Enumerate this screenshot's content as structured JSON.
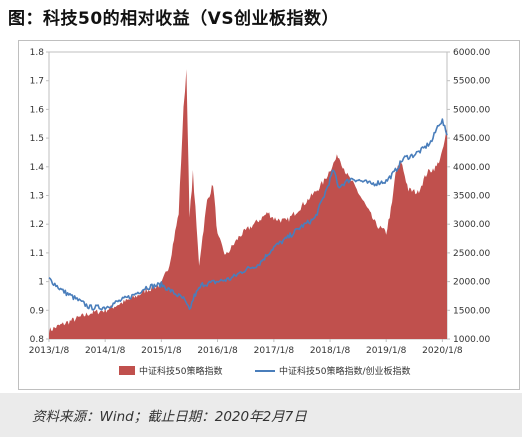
{
  "title": "图：科技50的相对收益（VS创业板指数）",
  "source": "资料来源：Wind；截止日期：2020年2月7日",
  "colors": {
    "area": "#c0504d",
    "line": "#4a7ebb",
    "axis": "#bfbfbf"
  },
  "chart_data": {
    "type": "area",
    "title": "",
    "x_ticks": [
      "2013/1/8",
      "2014/1/8",
      "2015/1/8",
      "2016/1/8",
      "2017/1/8",
      "2018/1/8",
      "2019/1/8",
      "2020/1/8"
    ],
    "xlim": [
      "2013/1/8",
      "2020/2/7"
    ],
    "y_left": {
      "ticks": [
        "0.8",
        "0.9",
        "1",
        "1.1",
        "1.2",
        "1.3",
        "1.4",
        "1.5",
        "1.6",
        "1.7",
        "1.8"
      ],
      "lim": [
        0.8,
        1.8
      ]
    },
    "y_right": {
      "ticks": [
        "1000.00",
        "1500.00",
        "2000.00",
        "2500.00",
        "3000.00",
        "3500.00",
        "4000.00",
        "4500.00",
        "5000.00",
        "5500.00",
        "6000.00"
      ],
      "lim": [
        1000,
        6000
      ]
    },
    "legend_position": "bottom",
    "series": [
      {
        "name": "中证科技50策略指数",
        "kind": "area",
        "axis": "right",
        "points": [
          [
            "2013/1/8",
            1150
          ],
          [
            "2013/4/1",
            1250
          ],
          [
            "2013/7/1",
            1350
          ],
          [
            "2013/10/1",
            1450
          ],
          [
            "2014/1/8",
            1500
          ],
          [
            "2014/4/1",
            1600
          ],
          [
            "2014/7/1",
            1700
          ],
          [
            "2014/10/1",
            1850
          ],
          [
            "2015/1/8",
            1950
          ],
          [
            "2015/3/1",
            2300
          ],
          [
            "2015/5/1",
            3200
          ],
          [
            "2015/6/1",
            5000
          ],
          [
            "2015/6/20",
            5700
          ],
          [
            "2015/7/10",
            3100
          ],
          [
            "2015/8/1",
            3900
          ],
          [
            "2015/9/10",
            2300
          ],
          [
            "2015/11/1",
            3400
          ],
          [
            "2015/12/10",
            3700
          ],
          [
            "2016/1/8",
            2800
          ],
          [
            "2016/3/1",
            2450
          ],
          [
            "2016/6/1",
            2800
          ],
          [
            "2016/9/1",
            3000
          ],
          [
            "2016/12/1",
            3200
          ],
          [
            "2017/1/8",
            3100
          ],
          [
            "2017/4/1",
            3050
          ],
          [
            "2017/7/1",
            3300
          ],
          [
            "2017/10/1",
            3550
          ],
          [
            "2017/12/1",
            3750
          ],
          [
            "2018/1/8",
            3950
          ],
          [
            "2018/3/1",
            4200
          ],
          [
            "2018/5/1",
            3850
          ],
          [
            "2018/7/1",
            3600
          ],
          [
            "2018/9/1",
            3300
          ],
          [
            "2018/11/1",
            3000
          ],
          [
            "2019/1/8",
            2850
          ],
          [
            "2019/2/15",
            3350
          ],
          [
            "2019/3/10",
            3900
          ],
          [
            "2019/4/15",
            4100
          ],
          [
            "2019/6/1",
            3600
          ],
          [
            "2019/8/1",
            3550
          ],
          [
            "2019/10/1",
            3900
          ],
          [
            "2019/12/1",
            4000
          ],
          [
            "2020/1/8",
            4250
          ],
          [
            "2020/2/7",
            4650
          ]
        ]
      },
      {
        "name": "中证科技50策略指数/创业板指数",
        "kind": "line",
        "axis": "left",
        "points": [
          [
            "2013/1/8",
            1.01
          ],
          [
            "2013/4/1",
            0.97
          ],
          [
            "2013/7/1",
            0.94
          ],
          [
            "2013/10/1",
            0.91
          ],
          [
            "2014/1/8",
            0.91
          ],
          [
            "2014/4/1",
            0.93
          ],
          [
            "2014/7/1",
            0.95
          ],
          [
            "2014/10/1",
            0.98
          ],
          [
            "2015/1/8",
            0.99
          ],
          [
            "2015/4/1",
            0.96
          ],
          [
            "2015/6/1",
            0.94
          ],
          [
            "2015/7/10",
            0.9
          ],
          [
            "2015/8/10",
            0.95
          ],
          [
            "2015/10/1",
            0.99
          ],
          [
            "2016/1/8",
            1.0
          ],
          [
            "2016/4/1",
            1.01
          ],
          [
            "2016/7/1",
            1.04
          ],
          [
            "2016/10/1",
            1.06
          ],
          [
            "2017/1/8",
            1.12
          ],
          [
            "2017/4/1",
            1.15
          ],
          [
            "2017/7/1",
            1.19
          ],
          [
            "2017/10/1",
            1.22
          ],
          [
            "2017/12/1",
            1.3
          ],
          [
            "2018/2/1",
            1.39
          ],
          [
            "2018/3/1",
            1.33
          ],
          [
            "2018/6/1",
            1.36
          ],
          [
            "2018/8/1",
            1.35
          ],
          [
            "2018/10/1",
            1.34
          ],
          [
            "2019/1/8",
            1.35
          ],
          [
            "2019/3/1",
            1.38
          ],
          [
            "2019/5/1",
            1.43
          ],
          [
            "2019/7/1",
            1.44
          ],
          [
            "2019/9/1",
            1.46
          ],
          [
            "2019/11/1",
            1.49
          ],
          [
            "2019/12/15",
            1.55
          ],
          [
            "2020/1/8",
            1.56
          ],
          [
            "2020/2/7",
            1.51
          ]
        ]
      }
    ]
  }
}
